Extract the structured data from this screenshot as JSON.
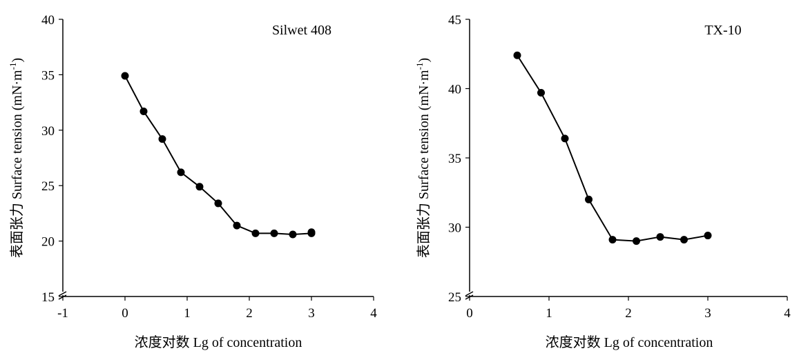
{
  "chart_data": [
    {
      "type": "line",
      "annotation": "Silwet 408",
      "xlabel": "浓度对数 Lg of concentration",
      "ylabel_main": "表面张力 Surface tension (mN·m",
      "ylabel_sup": "-1",
      "ylabel_close": ")",
      "xlim": [
        -1,
        4
      ],
      "ylim": [
        15,
        40
      ],
      "xticks": [
        -1,
        0,
        1,
        2,
        3,
        4
      ],
      "yticks": [
        15,
        20,
        25,
        30,
        35,
        40
      ],
      "axis_break": true,
      "x": [
        0,
        0.3,
        0.6,
        0.9,
        1.2,
        1.5,
        1.8,
        2.1,
        2.4,
        2.7,
        3.0
      ],
      "y": [
        34.9,
        31.7,
        29.2,
        26.2,
        24.9,
        23.4,
        21.4,
        20.7,
        20.7,
        20.6,
        20.7
      ],
      "extra_points": [
        {
          "x": 3.0,
          "y": 20.8
        }
      ]
    },
    {
      "type": "line",
      "annotation": "TX-10",
      "xlabel": "浓度对数 Lg of concentration",
      "ylabel_main": "表面张力 Surface tension (mN·m",
      "ylabel_sup": "-1",
      "ylabel_close": ")",
      "xlim": [
        0,
        4
      ],
      "ylim": [
        25,
        45
      ],
      "xticks": [
        0,
        1,
        2,
        3,
        4
      ],
      "yticks": [
        25,
        30,
        35,
        40,
        45
      ],
      "axis_break": true,
      "x": [
        0.6,
        0.9,
        1.2,
        1.5,
        1.8,
        2.1,
        2.4,
        2.7,
        3.0
      ],
      "y": [
        42.4,
        39.7,
        36.4,
        32.0,
        29.1,
        29.0,
        29.3,
        29.1,
        29.4
      ],
      "extra_points": []
    }
  ]
}
